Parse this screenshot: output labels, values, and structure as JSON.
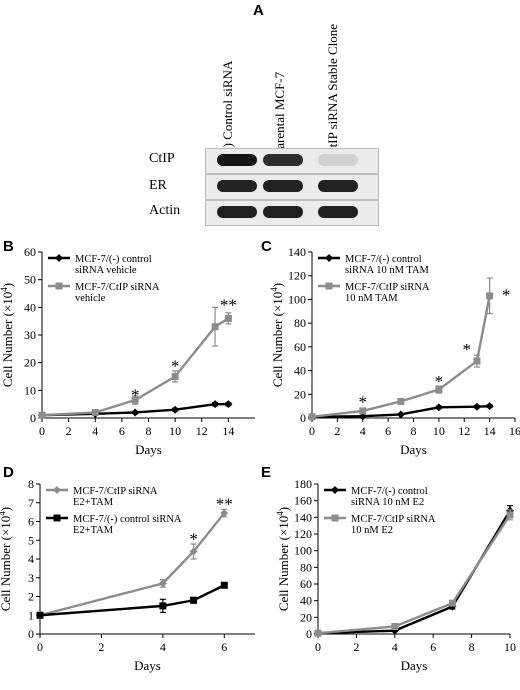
{
  "panel_a": {
    "letter": "A",
    "lanes": [
      "(-) Control siRNA",
      "Parental MCF-7",
      "CtIP siRNA Stable Clone"
    ],
    "rows": [
      {
        "label": "CtIP",
        "band_intensity": [
          0.95,
          0.85,
          0.12
        ]
      },
      {
        "label": "ER",
        "band_intensity": [
          0.9,
          0.9,
          0.9
        ]
      },
      {
        "label": "Actin",
        "band_intensity": [
          0.9,
          0.9,
          0.9
        ]
      }
    ]
  },
  "chart_data": [
    {
      "panel": "B",
      "type": "line",
      "xlabel": "Days",
      "ylabel": "Cell Number (×10",
      "ylabel_sup": "4",
      "ylabel_end": ")",
      "xlim": [
        0,
        16
      ],
      "ylim": [
        0,
        60
      ],
      "xticks": [
        0,
        2,
        4,
        6,
        8,
        10,
        12,
        14
      ],
      "yticks": [
        0,
        10,
        20,
        30,
        40,
        50,
        60
      ],
      "legend_position": "top-left",
      "series": [
        {
          "name": "MCF-7/(-) control siRNA vehicle",
          "legend_lines": [
            "MCF-7/(-) control",
            "siRNA vehicle"
          ],
          "color": "#000000",
          "marker": "diamond",
          "x": [
            0,
            4,
            7,
            10,
            13,
            14
          ],
          "y": [
            1,
            1.5,
            2,
            3,
            5,
            5
          ],
          "err": [
            0.3,
            0.3,
            0.4,
            0.5,
            0.6,
            0.6
          ]
        },
        {
          "name": "MCF-7/CtIP siRNA vehicle",
          "legend_lines": [
            "MCF-7/CtIP siRNA",
            "vehicle"
          ],
          "color": "#8c8c8c",
          "marker": "square",
          "x": [
            0,
            4,
            7,
            10,
            13,
            14
          ],
          "y": [
            1,
            2,
            6.5,
            15,
            33,
            36
          ],
          "err": [
            0.3,
            0.6,
            1.5,
            2,
            7,
            2
          ]
        }
      ],
      "annotations": [
        {
          "text": "*",
          "x": 7,
          "y": 8.5
        },
        {
          "text": "*",
          "x": 10,
          "y": 19
        },
        {
          "text": "**",
          "x": 14,
          "y": 41
        }
      ]
    },
    {
      "panel": "C",
      "type": "line",
      "xlabel": "Days",
      "ylabel": "Cell Number (×10",
      "ylabel_sup": "4",
      "ylabel_end": ")",
      "xlim": [
        0,
        16
      ],
      "ylim": [
        0,
        140
      ],
      "xticks": [
        0,
        2,
        4,
        6,
        8,
        10,
        12,
        14,
        16
      ],
      "yticks": [
        0,
        20,
        40,
        60,
        80,
        100,
        120,
        140
      ],
      "legend_position": "top-left",
      "series": [
        {
          "name": "MCF-7/(-) control siRNA 10 nM TAM",
          "legend_lines": [
            "MCF-7/(-) control",
            "siRNA 10 nM TAM"
          ],
          "color": "#000000",
          "marker": "diamond",
          "x": [
            0,
            4,
            7,
            10,
            13,
            14
          ],
          "y": [
            1,
            1.5,
            3,
            9,
            9.5,
            10
          ],
          "err": [
            0.3,
            0.3,
            0.5,
            1,
            1,
            1
          ]
        },
        {
          "name": "MCF-7/CtIP siRNA 10 nM TAM",
          "legend_lines": [
            "MCF-7/CtIP siRNA",
            "10 nM TAM"
          ],
          "color": "#8c8c8c",
          "marker": "square",
          "x": [
            0,
            4,
            7,
            10,
            13,
            14
          ],
          "y": [
            1,
            6,
            14,
            24,
            48,
            103
          ],
          "err": [
            0.3,
            1,
            2,
            3,
            5,
            15
          ]
        }
      ],
      "annotations": [
        {
          "text": "*",
          "x": 4,
          "y": 14
        },
        {
          "text": "*",
          "x": 10,
          "y": 31
        },
        {
          "text": "*",
          "x": 12.2,
          "y": 58
        },
        {
          "text": "*",
          "x": 15.3,
          "y": 104
        }
      ]
    },
    {
      "panel": "D",
      "type": "line",
      "xlabel": "Days",
      "ylabel": "Cell Number (×10",
      "ylabel_sup": "4",
      "ylabel_end": ")",
      "xlim": [
        0,
        7
      ],
      "ylim": [
        0,
        8
      ],
      "xticks": [
        0,
        2,
        4,
        6
      ],
      "yticks": [
        0,
        1,
        2,
        3,
        4,
        5,
        6,
        7,
        8
      ],
      "legend_position": "top-left",
      "series": [
        {
          "name": "MCF-7/CtIP siRNA E2+TAM",
          "legend_lines": [
            "MCF-7/CtIP siRNA",
            "E2+TAM"
          ],
          "color": "#8c8c8c",
          "marker": "diamond",
          "x": [
            0,
            4,
            5,
            6
          ],
          "y": [
            1,
            2.7,
            4.4,
            6.45
          ],
          "err": [
            0.05,
            0.2,
            0.4,
            0.2
          ]
        },
        {
          "name": "MCF-7/(-) control siRNA E2+TAM",
          "legend_lines": [
            "MCF-7/(-) control siRNA",
            "E2+TAM"
          ],
          "color": "#000000",
          "marker": "square",
          "x": [
            0,
            4,
            5,
            6
          ],
          "y": [
            1,
            1.5,
            1.8,
            2.6
          ],
          "err": [
            0.05,
            0.35,
            0.15,
            0.1
          ]
        }
      ],
      "annotations": [
        {
          "text": "*",
          "x": 5,
          "y": 5.1
        },
        {
          "text": "**",
          "x": 6,
          "y": 6.95
        }
      ]
    },
    {
      "panel": "E",
      "type": "line",
      "xlabel": "Days",
      "ylabel": "Cell Number (×10",
      "ylabel_sup": "4",
      "ylabel_end": ")",
      "xlim": [
        0,
        10
      ],
      "ylim": [
        0,
        180
      ],
      "xticks": [
        0,
        2,
        4,
        6,
        8,
        10
      ],
      "yticks": [
        0,
        20,
        40,
        60,
        80,
        100,
        120,
        140,
        160,
        180
      ],
      "legend_position": "top-left",
      "series": [
        {
          "name": "MCF-7/(-) control siRNA 10 nM E2",
          "legend_lines": [
            "MCF-7/(-) control",
            "siRNA 10 nM E2"
          ],
          "color": "#000000",
          "marker": "diamond",
          "x": [
            0,
            4,
            7,
            10
          ],
          "y": [
            1,
            4,
            33,
            148
          ],
          "err": [
            0.5,
            1,
            3,
            6
          ]
        },
        {
          "name": "MCF-7/CtIP siRNA 10 nM E2",
          "legend_lines": [
            "MCF-7/CtIP siRNA",
            "10 nM E2"
          ],
          "color": "#8c8c8c",
          "marker": "square",
          "x": [
            0,
            4,
            7,
            10
          ],
          "y": [
            1,
            9,
            37,
            143
          ],
          "err": [
            0.5,
            1.5,
            3,
            6
          ]
        }
      ],
      "annotations": []
    }
  ]
}
